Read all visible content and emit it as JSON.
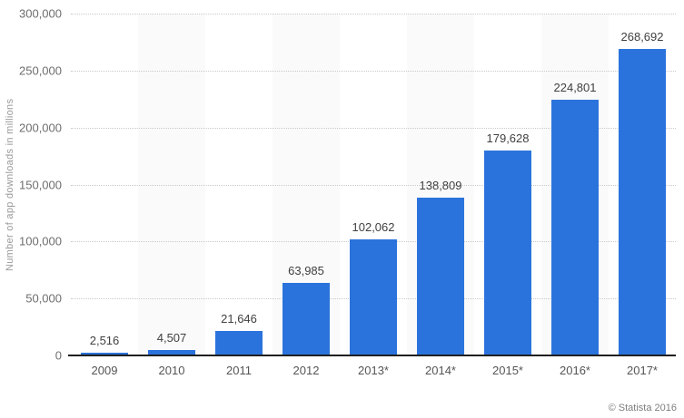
{
  "chart_data": {
    "type": "bar",
    "title": "",
    "xlabel": "",
    "ylabel": "Number of app downloads in millions",
    "categories": [
      "2009",
      "2010",
      "2011",
      "2012",
      "2013*",
      "2014*",
      "2015*",
      "2016*",
      "2017*"
    ],
    "values": [
      2516,
      4507,
      21646,
      63985,
      102062,
      138809,
      179628,
      224801,
      268692
    ],
    "value_labels": [
      "2,516",
      "4,507",
      "21,646",
      "63,985",
      "102,062",
      "138,809",
      "179,628",
      "224,801",
      "268,692"
    ],
    "ylim": [
      0,
      300000
    ],
    "yticks": [
      0,
      50000,
      100000,
      150000,
      200000,
      250000,
      300000
    ],
    "ytick_labels": [
      "0",
      "50,000",
      "100,000",
      "150,000",
      "200,000",
      "250,000",
      "300,000"
    ],
    "grid": "horizontal-dotted",
    "legend_position": "none",
    "bar_color": "#2b73dc",
    "stripe_color": "#fafafa",
    "axis_line_color": "#1f1f1f"
  },
  "footer": {
    "credit": "© Statista 2016"
  }
}
